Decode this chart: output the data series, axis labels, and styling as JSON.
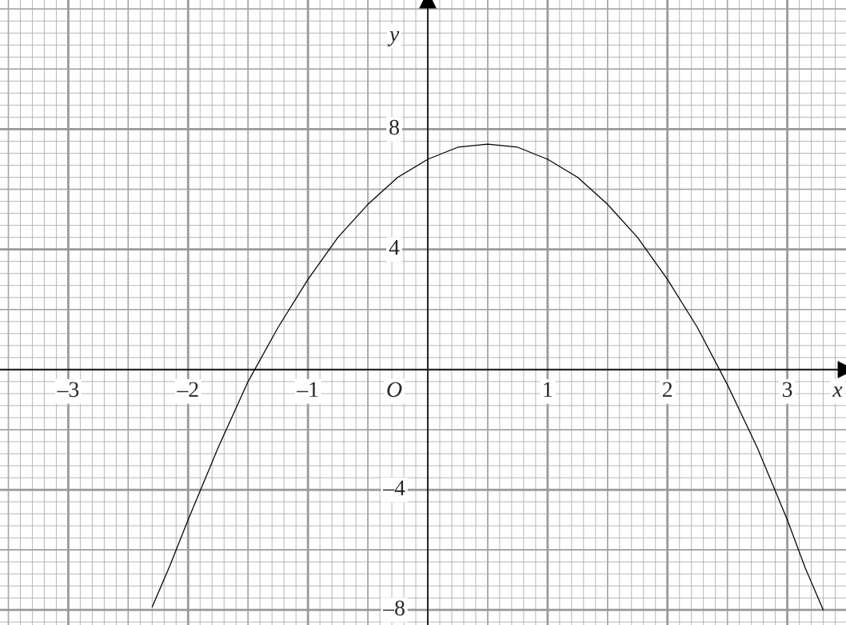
{
  "chart_data": {
    "type": "line",
    "xlabel": "x",
    "ylabel": "y",
    "x": [
      -2.3,
      -2.15,
      -2,
      -1.75,
      -1.5,
      -1.25,
      -1,
      -0.75,
      -0.5,
      -0.25,
      0,
      0.25,
      0.5,
      0.75,
      1,
      1.25,
      1.5,
      1.75,
      2,
      2.25,
      2.5,
      2.75,
      3,
      3.15,
      3.3
    ],
    "series": [
      {
        "color": "#000000",
        "values": [
          -7.9,
          -6.5,
          -5.0,
          -2.6,
          -0.4,
          1.4,
          3.0,
          4.4,
          5.5,
          6.4,
          7.0,
          7.4,
          7.5,
          7.4,
          7.0,
          6.4,
          5.5,
          4.4,
          3.0,
          1.4,
          -0.5,
          -2.6,
          -5.0,
          -6.6,
          -8.0
        ]
      }
    ],
    "annotations": [
      "O"
    ],
    "xlim": [
      -3.57,
      3.49
    ],
    "ylim": [
      -8.5,
      12.3
    ],
    "xticks": [
      {
        "value": -3,
        "label": "–3"
      },
      {
        "value": -2,
        "label": "–2"
      },
      {
        "value": -1,
        "label": "–1"
      },
      1,
      2,
      3
    ],
    "yticks": [
      {
        "value": -8,
        "label": "–8"
      },
      {
        "value": -4,
        "label": "–4"
      },
      4,
      8
    ],
    "grid": true,
    "marker": "none",
    "line_style": "solid",
    "legend": false
  }
}
